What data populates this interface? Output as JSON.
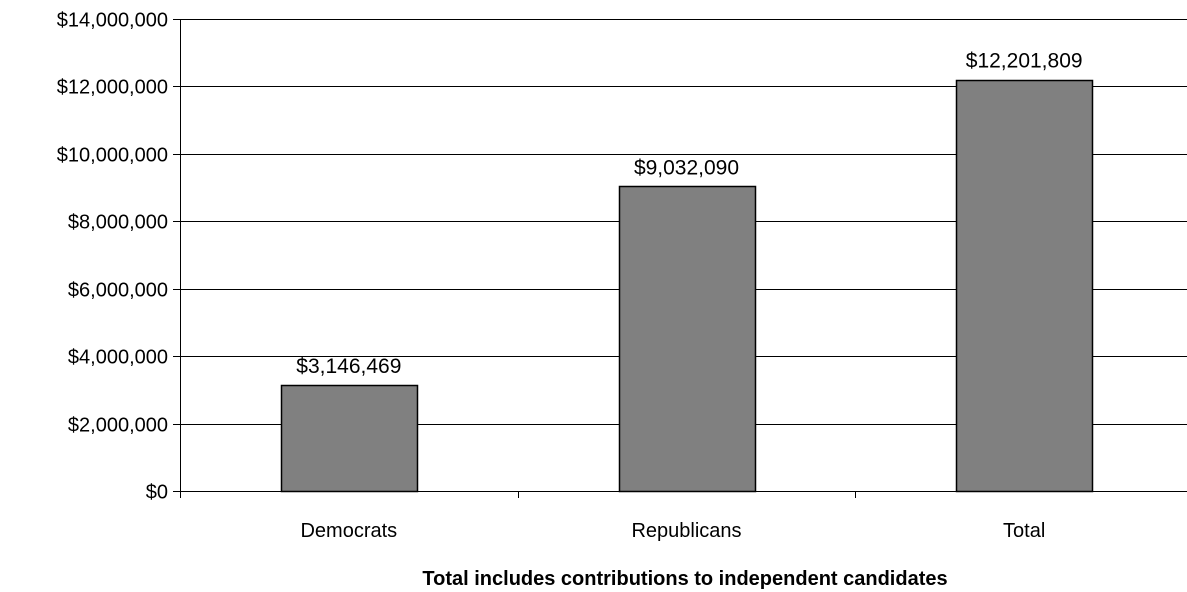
{
  "chart_data": {
    "type": "bar",
    "categories": [
      "Democrats",
      "Republicans",
      "Total"
    ],
    "values": [
      3146469,
      9032090,
      12201809
    ],
    "data_labels": [
      "$3,146,469",
      "$9,032,090",
      "$12,201,809"
    ],
    "title": "",
    "xlabel": "Total includes contributions to independent candidates",
    "ylabel": "",
    "ylim": [
      0,
      14000000
    ],
    "yticks": [
      0,
      2000000,
      4000000,
      6000000,
      8000000,
      10000000,
      12000000,
      14000000
    ],
    "ytick_labels": [
      "$0",
      "$2,000,000",
      "$4,000,000",
      "$6,000,000",
      "$8,000,000",
      "$10,000,000",
      "$12,000,000",
      "$14,000,000"
    ],
    "grid": true,
    "legend": "none",
    "colors": {
      "bar": "#808080",
      "bar_stroke": "#000000",
      "grid": "#000000",
      "background": "#ffffff"
    }
  }
}
